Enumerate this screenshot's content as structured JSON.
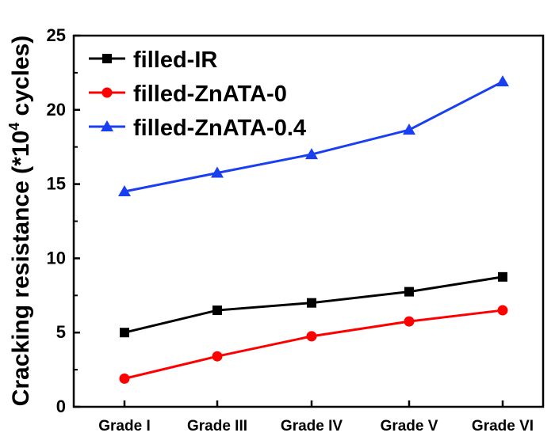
{
  "chart_data": {
    "type": "line",
    "categories": [
      "Grade I",
      "Grade III",
      "Grade IV",
      "Grade V",
      "Grade VI"
    ],
    "ylabel_main": "Cracking resistance (*10",
    "ylabel_sup": "4",
    "ylabel_tail": " cycles)",
    "ylim": [
      0,
      25
    ],
    "yticks": [
      0,
      5,
      10,
      15,
      20,
      25
    ],
    "grid": false,
    "legend_position": "top-left",
    "series": [
      {
        "name": "filled-IR",
        "values": [
          5.0,
          6.5,
          7.0,
          7.75,
          8.75
        ],
        "color": "#000000",
        "marker": "square"
      },
      {
        "name": "filled-ZnATA-0",
        "values": [
          1.9,
          3.4,
          4.75,
          5.75,
          6.5
        ],
        "color": "#ff0000",
        "marker": "circle"
      },
      {
        "name": "filled-ZnATA-0.4",
        "values": [
          14.5,
          15.75,
          17.0,
          18.65,
          21.9
        ],
        "color": "#1a3ff0",
        "marker": "triangle"
      }
    ]
  }
}
